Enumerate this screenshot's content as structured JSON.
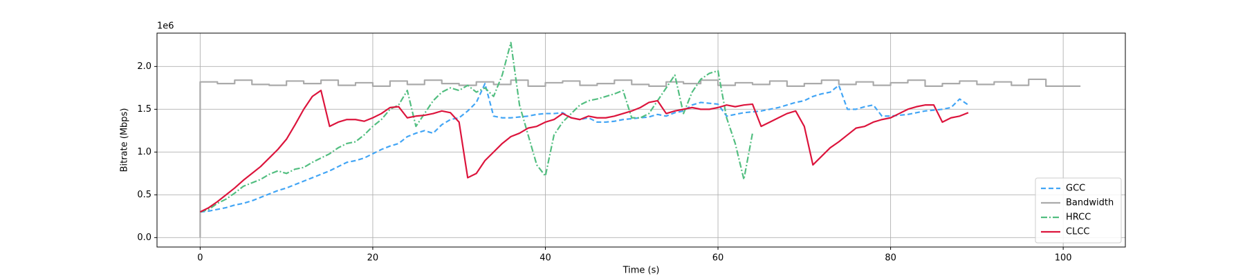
{
  "chart_data": {
    "type": "line",
    "offset_text": "1e6",
    "x_label": "Time (s)",
    "y_label": "Bitrate (Mbps)",
    "xlim": [
      -5.0,
      107.2
    ],
    "ylim": [
      -0.11,
      2.39
    ],
    "xticks": [
      0,
      20,
      40,
      60,
      80,
      100
    ],
    "yticks": [
      {
        "value": 0,
        "label": "0.0"
      },
      0.5,
      {
        "value": 1,
        "label": "1.0"
      },
      1.5,
      {
        "value": 2,
        "label": "2.0"
      }
    ],
    "grid": true,
    "legend_position": "lower-right",
    "series": [
      {
        "name": "GCC",
        "color": "#42a5f5",
        "linestyle": "dashed",
        "x": [
          0,
          1,
          2,
          3,
          4,
          5,
          6,
          7,
          8,
          9,
          10,
          11,
          12,
          13,
          14,
          15,
          16,
          17,
          18,
          19,
          20,
          21,
          22,
          23,
          24,
          25,
          26,
          27,
          28,
          29,
          30,
          31,
          32,
          33,
          34,
          35,
          36,
          37,
          38,
          39,
          40,
          41,
          42,
          43,
          44,
          45,
          46,
          47,
          48,
          49,
          50,
          51,
          52,
          53,
          54,
          55,
          56,
          57,
          58,
          59,
          60,
          61,
          62,
          63,
          64,
          65,
          66,
          67,
          68,
          69,
          70,
          71,
          72,
          73,
          74,
          75,
          76,
          77,
          78,
          79,
          80,
          81,
          82,
          83,
          84,
          85,
          86,
          87,
          88,
          89
        ],
        "values": [
          0.3,
          0.31,
          0.33,
          0.35,
          0.38,
          0.4,
          0.43,
          0.47,
          0.51,
          0.55,
          0.58,
          0.62,
          0.66,
          0.7,
          0.74,
          0.78,
          0.83,
          0.88,
          0.9,
          0.93,
          0.98,
          1.03,
          1.07,
          1.1,
          1.18,
          1.22,
          1.25,
          1.22,
          1.32,
          1.38,
          1.4,
          1.48,
          1.58,
          1.8,
          1.42,
          1.4,
          1.4,
          1.41,
          1.42,
          1.44,
          1.45,
          1.45,
          1.46,
          1.4,
          1.38,
          1.4,
          1.35,
          1.35,
          1.36,
          1.38,
          1.39,
          1.4,
          1.41,
          1.44,
          1.42,
          1.46,
          1.48,
          1.55,
          1.58,
          1.57,
          1.56,
          1.42,
          1.44,
          1.46,
          1.47,
          1.48,
          1.5,
          1.52,
          1.55,
          1.58,
          1.6,
          1.65,
          1.68,
          1.7,
          1.78,
          1.5,
          1.5,
          1.53,
          1.55,
          1.42,
          1.42,
          1.43,
          1.44,
          1.46,
          1.48,
          1.49,
          1.5,
          1.52,
          1.62,
          1.55
        ]
      },
      {
        "name": "Bandwidth",
        "color": "#aaaaaa",
        "linestyle": "solid",
        "x": [
          0,
          0,
          2,
          2,
          4,
          4,
          6,
          6,
          8,
          8,
          10,
          10,
          12,
          12,
          14,
          14,
          16,
          16,
          18,
          18,
          20,
          20,
          22,
          22,
          24,
          24,
          26,
          26,
          28,
          28,
          30,
          30,
          32,
          32,
          34,
          34,
          36,
          36,
          38,
          38,
          40,
          40,
          42,
          42,
          44,
          44,
          46,
          46,
          48,
          48,
          50,
          50,
          52,
          52,
          54,
          54,
          56,
          56,
          58,
          58,
          60,
          60,
          62,
          62,
          64,
          64,
          66,
          66,
          68,
          68,
          70,
          70,
          72,
          72,
          74,
          74,
          76,
          76,
          78,
          78,
          80,
          80,
          82,
          82,
          84,
          84,
          86,
          86,
          88,
          88,
          90,
          90,
          92,
          92,
          94,
          94,
          96,
          96,
          98,
          98,
          100,
          100,
          102
        ],
        "values": [
          0,
          1.82,
          1.82,
          1.8,
          1.8,
          1.84,
          1.84,
          1.79,
          1.79,
          1.78,
          1.78,
          1.83,
          1.83,
          1.8,
          1.8,
          1.84,
          1.84,
          1.78,
          1.78,
          1.81,
          1.81,
          1.77,
          1.77,
          1.83,
          1.83,
          1.79,
          1.79,
          1.84,
          1.84,
          1.8,
          1.8,
          1.78,
          1.78,
          1.82,
          1.82,
          1.79,
          1.79,
          1.84,
          1.84,
          1.77,
          1.77,
          1.81,
          1.81,
          1.83,
          1.83,
          1.78,
          1.78,
          1.8,
          1.8,
          1.84,
          1.84,
          1.79,
          1.79,
          1.77,
          1.77,
          1.82,
          1.82,
          1.8,
          1.8,
          1.84,
          1.84,
          1.78,
          1.78,
          1.81,
          1.81,
          1.79,
          1.79,
          1.83,
          1.83,
          1.77,
          1.77,
          1.8,
          1.8,
          1.84,
          1.84,
          1.79,
          1.79,
          1.82,
          1.82,
          1.78,
          1.78,
          1.81,
          1.81,
          1.84,
          1.84,
          1.77,
          1.77,
          1.8,
          1.8,
          1.83,
          1.83,
          1.79,
          1.79,
          1.82,
          1.82,
          1.78,
          1.78,
          1.85,
          1.85,
          1.77,
          1.77,
          1.77,
          1.77
        ]
      },
      {
        "name": "HRCC",
        "color": "#52be80",
        "linestyle": "dashdot",
        "x": [
          0,
          1,
          2,
          3,
          4,
          5,
          6,
          7,
          8,
          9,
          10,
          11,
          12,
          13,
          14,
          15,
          16,
          17,
          18,
          19,
          20,
          21,
          22,
          23,
          24,
          25,
          26,
          27,
          28,
          29,
          30,
          31,
          32,
          33,
          34,
          35,
          36,
          37,
          38,
          39,
          40,
          41,
          42,
          43,
          44,
          45,
          46,
          47,
          48,
          49,
          50,
          51,
          52,
          53,
          54,
          55,
          56,
          57,
          58,
          59,
          60,
          61,
          62,
          63,
          64
        ],
        "values": [
          0.3,
          0.33,
          0.4,
          0.45,
          0.52,
          0.6,
          0.64,
          0.68,
          0.74,
          0.78,
          0.75,
          0.8,
          0.82,
          0.88,
          0.93,
          0.98,
          1.05,
          1.1,
          1.12,
          1.2,
          1.3,
          1.38,
          1.5,
          1.55,
          1.72,
          1.3,
          1.45,
          1.6,
          1.7,
          1.75,
          1.72,
          1.78,
          1.7,
          1.75,
          1.65,
          1.9,
          2.28,
          1.55,
          1.2,
          0.85,
          0.72,
          1.2,
          1.35,
          1.45,
          1.55,
          1.6,
          1.62,
          1.65,
          1.68,
          1.72,
          1.4,
          1.4,
          1.45,
          1.6,
          1.75,
          1.9,
          1.45,
          1.7,
          1.85,
          1.92,
          1.95,
          1.4,
          1.1,
          0.68,
          1.22
        ]
      },
      {
        "name": "CLCC",
        "color": "#dc143c",
        "linestyle": "solid",
        "x": [
          0,
          1,
          2,
          3,
          4,
          5,
          6,
          7,
          8,
          9,
          10,
          11,
          12,
          13,
          14,
          15,
          16,
          17,
          18,
          19,
          20,
          21,
          22,
          23,
          24,
          25,
          26,
          27,
          28,
          29,
          30,
          31,
          32,
          33,
          34,
          35,
          36,
          37,
          38,
          39,
          40,
          41,
          42,
          43,
          44,
          45,
          46,
          47,
          48,
          49,
          50,
          51,
          52,
          53,
          54,
          55,
          56,
          57,
          58,
          59,
          60,
          61,
          62,
          63,
          64,
          65,
          66,
          67,
          68,
          69,
          70,
          71,
          72,
          73,
          74,
          75,
          76,
          77,
          78,
          79,
          80,
          81,
          82,
          83,
          84,
          85,
          86,
          87,
          88,
          89
        ],
        "values": [
          0.3,
          0.35,
          0.42,
          0.5,
          0.58,
          0.67,
          0.75,
          0.83,
          0.93,
          1.03,
          1.15,
          1.32,
          1.5,
          1.65,
          1.72,
          1.3,
          1.35,
          1.38,
          1.38,
          1.36,
          1.4,
          1.45,
          1.52,
          1.53,
          1.4,
          1.42,
          1.43,
          1.45,
          1.48,
          1.46,
          1.35,
          0.7,
          0.75,
          0.9,
          1.0,
          1.1,
          1.18,
          1.22,
          1.28,
          1.3,
          1.35,
          1.38,
          1.45,
          1.4,
          1.38,
          1.42,
          1.4,
          1.4,
          1.42,
          1.45,
          1.48,
          1.52,
          1.58,
          1.6,
          1.45,
          1.48,
          1.5,
          1.52,
          1.5,
          1.5,
          1.52,
          1.55,
          1.53,
          1.55,
          1.56,
          1.3,
          1.35,
          1.4,
          1.45,
          1.48,
          1.3,
          0.85,
          0.95,
          1.05,
          1.12,
          1.2,
          1.28,
          1.3,
          1.35,
          1.38,
          1.4,
          1.45,
          1.5,
          1.53,
          1.55,
          1.55,
          1.35,
          1.4,
          1.42,
          1.46
        ]
      }
    ]
  }
}
